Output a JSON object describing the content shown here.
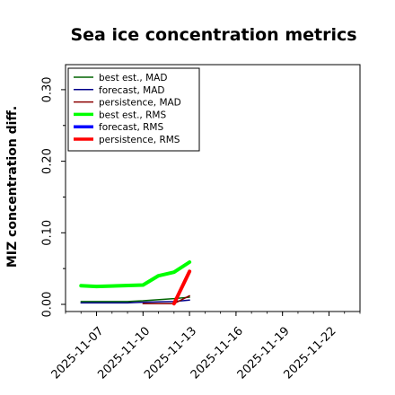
{
  "chart_data": {
    "type": "line",
    "title": "Sea ice concentration metrics",
    "xlabel": "",
    "ylabel": "MIZ concentration diff.",
    "ylim": [
      -0.01,
      0.335
    ],
    "xlim": [
      "2025-11-05",
      "2025-11-24"
    ],
    "yticks": [
      "0.00",
      "0.10",
      "0.20",
      "0.30"
    ],
    "xticks": [
      {
        "date": "2025-11-07",
        "label": "2025-11-07",
        "color": "#000000"
      },
      {
        "date": "2025-11-10",
        "label": "2025-11-10",
        "color": "#000000"
      },
      {
        "date": "2025-11-13",
        "label": "2025-11-13",
        "color": "#228B22"
      },
      {
        "date": "2025-11-16",
        "label": "2025-11-16",
        "color": "#000000"
      },
      {
        "date": "2025-11-19",
        "label": "2025-11-19",
        "color": "#000000"
      },
      {
        "date": "2025-11-22",
        "label": "2025-11-22",
        "color": "#000000"
      }
    ],
    "grid": false,
    "legend_position": "top-left",
    "series": [
      {
        "name": "best est., MAD",
        "color": "#006400",
        "width": 1.5,
        "x": [
          "2025-11-06",
          "2025-11-09",
          "2025-11-10",
          "2025-11-12",
          "2025-11-13"
        ],
        "y": [
          0.004,
          0.004,
          0.005,
          0.008,
          0.01
        ]
      },
      {
        "name": "forecast,  MAD",
        "color": "#00008B",
        "width": 1.5,
        "x": [
          "2025-11-06",
          "2025-11-09",
          "2025-11-10",
          "2025-11-12",
          "2025-11-13"
        ],
        "y": [
          0.002,
          0.002,
          0.003,
          0.004,
          0.006
        ]
      },
      {
        "name": "persistence, MAD",
        "color": "#8B0000",
        "width": 1.5,
        "x": [
          "2025-11-10",
          "2025-11-12",
          "2025-11-13"
        ],
        "y": [
          0.001,
          0.001,
          0.012
        ]
      },
      {
        "name": "best est., RMS",
        "color": "#00FF00",
        "width": 4,
        "x": [
          "2025-11-06",
          "2025-11-07",
          "2025-11-10",
          "2025-11-11",
          "2025-11-12",
          "2025-11-13"
        ],
        "y": [
          0.026,
          0.025,
          0.027,
          0.04,
          0.045,
          0.059
        ]
      },
      {
        "name": "forecast,  RMS",
        "color": "#0000FF",
        "width": 4,
        "x": [],
        "y": []
      },
      {
        "name": "persistence, RMS",
        "color": "#FF0000",
        "width": 4,
        "x": [
          "2025-11-12",
          "2025-11-13"
        ],
        "y": [
          0.001,
          0.046
        ]
      }
    ]
  }
}
